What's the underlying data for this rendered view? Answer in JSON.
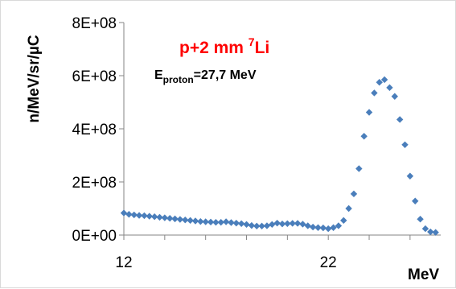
{
  "chart_data": {
    "type": "scatter",
    "xlabel": "MeV",
    "ylabel": "n/MeV/sr/µC",
    "xlim": [
      12,
      27.5
    ],
    "ylim": [
      0,
      800000000
    ],
    "x_ticks": [
      {
        "value": 12,
        "label": "12"
      },
      {
        "value": 22,
        "label": "22"
      }
    ],
    "y_ticks": [
      {
        "value": 0,
        "label": "0E+00"
      },
      {
        "value": 200000000,
        "label": "2E+08"
      },
      {
        "value": 400000000,
        "label": "4E+08"
      },
      {
        "value": 600000000,
        "label": "6E+08"
      },
      {
        "value": 800000000,
        "label": "8E+08"
      }
    ],
    "grid": false,
    "marker_color": "#4a7ebb",
    "annotations": {
      "reaction": {
        "main": "p+2 mm ",
        "sup": "7",
        "tail": "Li",
        "color": "#ff0000"
      },
      "energy": {
        "main": "E",
        "sub": "proton",
        "tail": "=27,7 MeV"
      }
    },
    "series": [
      {
        "x": [
          12.0,
          12.25,
          12.5,
          12.75,
          13.0,
          13.25,
          13.5,
          13.75,
          14.0,
          14.25,
          14.5,
          14.75,
          15.0,
          15.25,
          15.5,
          15.75,
          16.0,
          16.25,
          16.5,
          16.75,
          17.0,
          17.25,
          17.5,
          17.75,
          18.0,
          18.25,
          18.5,
          18.75,
          19.0,
          19.25,
          19.5,
          19.75,
          20.0,
          20.25,
          20.5,
          20.75,
          21.0,
          21.25,
          21.5,
          21.75,
          22.0,
          22.25,
          22.5,
          22.75,
          23.0,
          23.25,
          23.5,
          23.75,
          24.0,
          24.25,
          24.5,
          24.75,
          25.0,
          25.25,
          25.5,
          25.75,
          26.0,
          26.25,
          26.5,
          26.75,
          27.0,
          27.25
        ],
        "y": [
          83000000,
          78000000,
          76000000,
          74000000,
          73000000,
          71000000,
          69000000,
          67000000,
          65000000,
          63000000,
          61000000,
          59000000,
          57000000,
          55000000,
          53000000,
          51000000,
          50000000,
          49000000,
          48000000,
          48000000,
          50000000,
          47000000,
          45000000,
          43000000,
          40000000,
          36000000,
          34000000,
          34000000,
          35000000,
          40000000,
          45000000,
          42000000,
          43000000,
          44000000,
          44000000,
          41000000,
          35000000,
          30000000,
          28000000,
          27000000,
          24000000,
          28000000,
          35000000,
          55000000,
          100000000,
          155000000,
          250000000,
          372000000,
          462000000,
          535000000,
          575000000,
          585000000,
          555000000,
          522000000,
          435000000,
          340000000,
          222000000,
          128000000,
          60000000,
          24000000,
          12000000,
          10000000
        ]
      }
    ]
  }
}
